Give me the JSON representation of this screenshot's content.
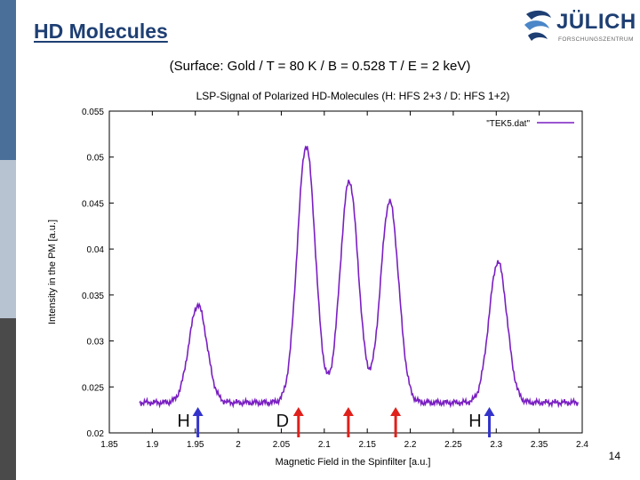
{
  "slide": {
    "title": "HD Molecules",
    "subtitle": "(Surface: Gold / T = 80 K / B = 0.528 T / E = 2 keV)",
    "page_number": "14"
  },
  "logo": {
    "name": "JÜLICH",
    "subtitle": "FORSCHUNGSZENTRUM",
    "color": "#1e3f73"
  },
  "colors": {
    "title": "#1e3f73",
    "series": "#7a1fc2",
    "arrow_h": "#3333cc",
    "arrow_d": "#e0201b"
  },
  "chart_data": {
    "type": "line",
    "title": "LSP-Signal of Polarized HD-Molecules (H: HFS 2+3 / D: HFS 1+2)",
    "xlabel": "Magnetic Field in the Spinfilter [a.u.]",
    "ylabel": "Intensity in the PM [a.u.]",
    "xlim": [
      1.85,
      2.4
    ],
    "ylim": [
      0.02,
      0.055
    ],
    "x_ticks": [
      "1.85",
      "1.9",
      "1.95",
      "2",
      "2.05",
      "2.1",
      "2.15",
      "2.2",
      "2.25",
      "2.3",
      "2.35",
      "2.4"
    ],
    "y_ticks": [
      "0.02",
      "0.025",
      "0.03",
      "0.035",
      "0.04",
      "0.045",
      "0.05",
      "0.055"
    ],
    "legend": [
      "\"TEK5.dat\""
    ],
    "series": [
      {
        "name": "\"TEK5.dat\"",
        "baseline": 0.0233,
        "x_start": 1.885,
        "x_end": 2.395,
        "peaks": [
          {
            "center": 1.953,
            "height": 0.0339
          },
          {
            "center": 2.079,
            "height": 0.0512
          },
          {
            "center": 2.129,
            "height": 0.0474
          },
          {
            "center": 2.176,
            "height": 0.0452
          },
          {
            "center": 2.302,
            "height": 0.0386
          }
        ]
      }
    ],
    "markers": [
      {
        "label": "H",
        "x": 1.953,
        "type": "H"
      },
      {
        "label": "D",
        "x": 2.07,
        "type": "D"
      },
      {
        "label": "",
        "x": 2.128,
        "type": "D"
      },
      {
        "label": "",
        "x": 2.183,
        "type": "D"
      },
      {
        "label": "H",
        "x": 2.292,
        "type": "H"
      }
    ]
  }
}
